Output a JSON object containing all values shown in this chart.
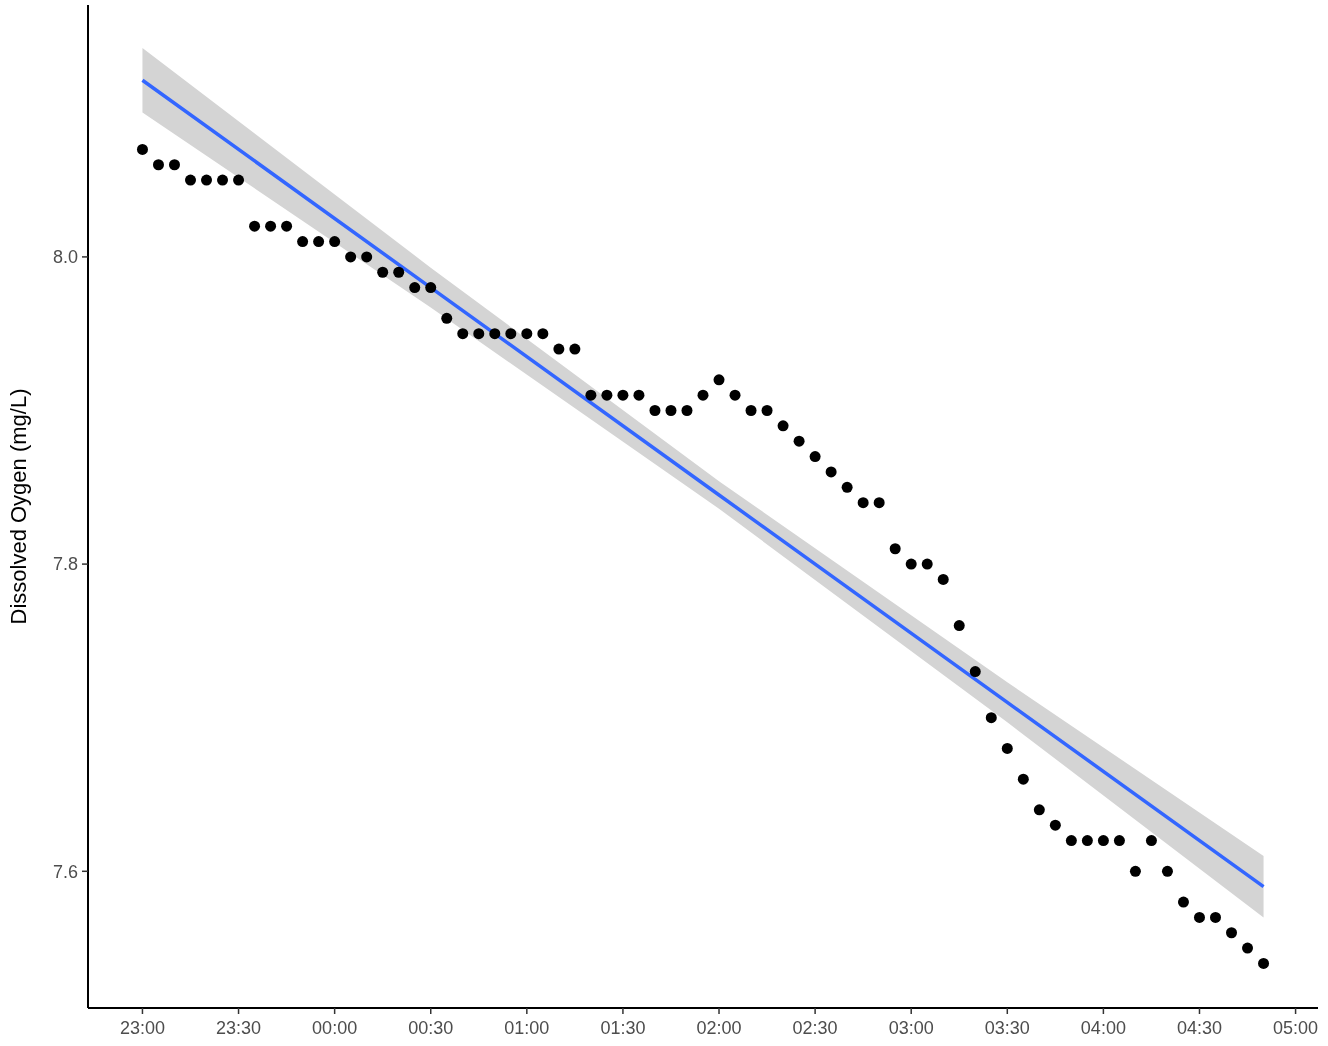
{
  "chart_data": {
    "type": "scatter",
    "ylabel": "Dissolved Oygen (mg/L)",
    "xlim": [
      "2000-01-01T22:43",
      "2000-01-02T05:07"
    ],
    "ylim": [
      7.511,
      8.164
    ],
    "xticks": [
      {
        "value": "2000-01-01T23:00",
        "label": "23:00"
      },
      {
        "value": "2000-01-01T23:30",
        "label": "23:30"
      },
      {
        "value": "2000-01-02T00:00",
        "label": "00:00"
      },
      {
        "value": "2000-01-02T00:30",
        "label": "00:30"
      },
      {
        "value": "2000-01-02T01:00",
        "label": "01:00"
      },
      {
        "value": "2000-01-02T01:30",
        "label": "01:30"
      },
      {
        "value": "2000-01-02T02:00",
        "label": "02:00"
      },
      {
        "value": "2000-01-02T02:30",
        "label": "02:30"
      },
      {
        "value": "2000-01-02T03:00",
        "label": "03:00"
      },
      {
        "value": "2000-01-02T03:30",
        "label": "03:30"
      },
      {
        "value": "2000-01-02T04:00",
        "label": "04:00"
      },
      {
        "value": "2000-01-02T04:30",
        "label": "04:30"
      },
      {
        "value": "2000-01-02T05:00",
        "label": "05:00"
      }
    ],
    "yticks": [
      {
        "value": 7.6,
        "label": "7.6"
      },
      {
        "value": 7.8,
        "label": "7.8"
      },
      {
        "value": 8.0,
        "label": "8.0"
      }
    ],
    "marker": "circle",
    "series": [
      {
        "color": "#000000",
        "x": [
          "2000-01-01T23:00",
          "2000-01-01T23:05",
          "2000-01-01T23:10",
          "2000-01-01T23:15",
          "2000-01-01T23:20",
          "2000-01-01T23:25",
          "2000-01-01T23:30",
          "2000-01-01T23:35",
          "2000-01-01T23:40",
          "2000-01-01T23:45",
          "2000-01-01T23:50",
          "2000-01-01T23:55",
          "2000-01-02T00:00",
          "2000-01-02T00:05",
          "2000-01-02T00:10",
          "2000-01-02T00:15",
          "2000-01-02T00:20",
          "2000-01-02T00:25",
          "2000-01-02T00:30",
          "2000-01-02T00:35",
          "2000-01-02T00:40",
          "2000-01-02T00:45",
          "2000-01-02T00:50",
          "2000-01-02T00:55",
          "2000-01-02T01:00",
          "2000-01-02T01:05",
          "2000-01-02T01:10",
          "2000-01-02T01:15",
          "2000-01-02T01:20",
          "2000-01-02T01:25",
          "2000-01-02T01:30",
          "2000-01-02T01:35",
          "2000-01-02T01:40",
          "2000-01-02T01:45",
          "2000-01-02T01:50",
          "2000-01-02T01:55",
          "2000-01-02T02:00",
          "2000-01-02T02:05",
          "2000-01-02T02:10",
          "2000-01-02T02:15",
          "2000-01-02T02:20",
          "2000-01-02T02:25",
          "2000-01-02T02:30",
          "2000-01-02T02:35",
          "2000-01-02T02:40",
          "2000-01-02T02:45",
          "2000-01-02T02:50",
          "2000-01-02T02:55",
          "2000-01-02T03:00",
          "2000-01-02T03:05",
          "2000-01-02T03:10",
          "2000-01-02T03:15",
          "2000-01-02T03:20",
          "2000-01-02T03:25",
          "2000-01-02T03:30",
          "2000-01-02T03:35",
          "2000-01-02T03:40",
          "2000-01-02T03:45",
          "2000-01-02T03:50",
          "2000-01-02T03:55",
          "2000-01-02T04:00",
          "2000-01-02T04:05",
          "2000-01-02T04:10",
          "2000-01-02T04:15",
          "2000-01-02T04:20",
          "2000-01-02T04:25",
          "2000-01-02T04:30",
          "2000-01-02T04:35",
          "2000-01-02T04:40",
          "2000-01-02T04:45",
          "2000-01-02T04:50"
        ],
        "values": [
          8.07,
          8.06,
          8.06,
          8.05,
          8.05,
          8.05,
          8.05,
          8.02,
          8.02,
          8.02,
          8.01,
          8.01,
          8.01,
          8.0,
          8.0,
          7.99,
          7.99,
          7.98,
          7.98,
          7.96,
          7.95,
          7.95,
          7.95,
          7.95,
          7.95,
          7.95,
          7.94,
          7.94,
          7.91,
          7.91,
          7.91,
          7.91,
          7.9,
          7.9,
          7.9,
          7.91,
          7.92,
          7.91,
          7.9,
          7.9,
          7.89,
          7.88,
          7.87,
          7.86,
          7.85,
          7.84,
          7.84,
          7.81,
          7.8,
          7.8,
          7.79,
          7.76,
          7.73,
          7.7,
          7.68,
          7.66,
          7.64,
          7.63,
          7.62,
          7.62,
          7.62,
          7.62,
          7.6,
          7.62,
          7.6,
          7.58,
          7.57,
          7.57,
          7.56,
          7.55,
          7.54
        ]
      },
      {
        "type": "line",
        "color": "#3366ff",
        "marker": "none",
        "line_style": "solid",
        "x": [
          "2000-01-01T23:00",
          "2000-01-02T00:30",
          "2000-01-02T02:00",
          "2000-01-02T03:30",
          "2000-01-02T04:50"
        ],
        "values": [
          8.115,
          7.98,
          7.845,
          7.71,
          7.59
        ],
        "lower": [
          8.094,
          7.967,
          7.836,
          7.697,
          7.57
        ],
        "upper": [
          8.136,
          7.993,
          7.854,
          7.723,
          7.61
        ]
      }
    ]
  }
}
